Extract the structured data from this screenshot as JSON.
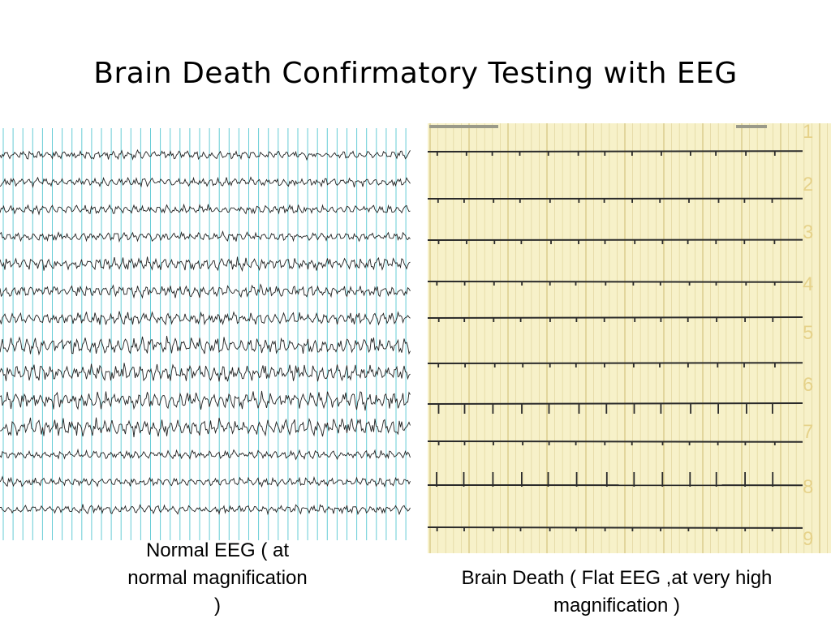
{
  "slide": {
    "title": "Brain Death Confirmatory Testing with EEG"
  },
  "normal_eeg": {
    "caption": "Normal EEG ( at normal magnification )",
    "channel_count": 14,
    "grid_color": "#66ccd6",
    "trace_color": "#222222"
  },
  "flat_eeg": {
    "caption": "Brain Death ( Flat EEG ,at very high magnification )",
    "channel_numbers": [
      "1",
      "2",
      "3",
      "4",
      "5",
      "6",
      "7",
      "8",
      "9"
    ],
    "paper_color": "#f7f1c9",
    "grid_color": "#e3d8a2",
    "number_color": "#e6d28a",
    "trace_color": "#2a2a2a"
  }
}
